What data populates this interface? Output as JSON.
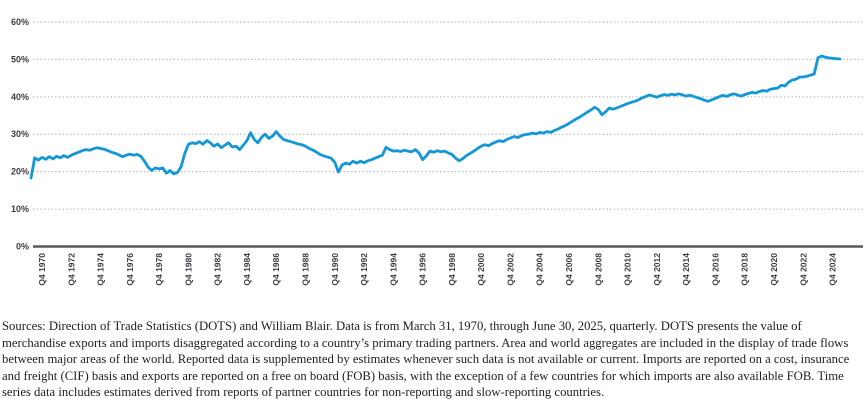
{
  "chart_data": {
    "type": "line",
    "title": "",
    "xlabel": "",
    "ylabel": "",
    "unit": "%",
    "frequency": "quarterly",
    "x_start": "Q1 1970",
    "x_end": "Q2 2025",
    "ylim": [
      0,
      60
    ],
    "grid": "dotted horizontal gridlines, solid baseline at 0%",
    "legend": "none",
    "y_tick_labels": [
      "0%",
      "10%",
      "20%",
      "30%",
      "40%",
      "50%",
      "60%"
    ],
    "x_tick_labels": [
      "Q4 1970",
      "Q4 1972",
      "Q4 1974",
      "Q4 1976",
      "Q4 1978",
      "Q4 1980",
      "Q4 1982",
      "Q4 1984",
      "Q4 1986",
      "Q4 1988",
      "Q4 1990",
      "Q4 1992",
      "Q4 1994",
      "Q4 1996",
      "Q4 1998",
      "Q4 2000",
      "Q4 2002",
      "Q4 2004",
      "Q4 2006",
      "Q4 2008",
      "Q4 2010",
      "Q4 2012",
      "Q4 2014",
      "Q4 2016",
      "Q4 2018",
      "Q4 2020",
      "Q4 2022",
      "Q4 2024"
    ],
    "values": [
      18.3,
      23.7,
      23.1,
      23.8,
      23.3,
      24.0,
      23.4,
      24.1,
      23.7,
      24.3,
      23.8,
      24.4,
      24.8,
      25.2,
      25.6,
      25.9,
      25.7,
      26.1,
      26.4,
      26.2,
      26.0,
      25.6,
      25.2,
      24.9,
      24.5,
      24.0,
      24.4,
      24.7,
      24.4,
      24.6,
      24.1,
      22.8,
      21.2,
      20.3,
      21.0,
      20.7,
      21.0,
      19.6,
      20.3,
      19.4,
      19.8,
      21.3,
      24.8,
      27.3,
      27.7,
      27.5,
      28.0,
      27.3,
      28.3,
      27.7,
      26.8,
      27.4,
      26.4,
      27.1,
      27.7,
      26.6,
      26.8,
      25.9,
      27.1,
      28.3,
      30.4,
      28.6,
      27.7,
      29.2,
      30.0,
      28.9,
      29.5,
      30.7,
      29.5,
      28.6,
      28.3,
      28.0,
      27.7,
      27.4,
      27.2,
      26.8,
      26.2,
      25.8,
      25.2,
      24.6,
      24.2,
      23.9,
      23.6,
      22.5,
      19.9,
      21.8,
      22.3,
      22.0,
      22.8,
      22.3,
      22.8,
      22.4,
      22.9,
      23.2,
      23.6,
      24.0,
      24.4,
      26.5,
      25.9,
      25.5,
      25.6,
      25.4,
      25.7,
      25.5,
      25.3,
      25.9,
      25.0,
      23.2,
      24.2,
      25.5,
      25.2,
      25.6,
      25.3,
      25.5,
      25.0,
      24.6,
      23.6,
      22.9,
      23.5,
      24.3,
      24.9,
      25.5,
      26.2,
      26.8,
      27.2,
      26.9,
      27.5,
      27.9,
      28.3,
      28.0,
      28.6,
      29.0,
      29.4,
      29.1,
      29.6,
      29.9,
      30.0,
      30.3,
      30.1,
      30.5,
      30.3,
      30.7,
      30.5,
      31.0,
      31.4,
      31.9,
      32.3,
      32.9,
      33.5,
      34.1,
      34.6,
      35.3,
      35.9,
      36.5,
      37.2,
      36.6,
      35.2,
      36.0,
      37.0,
      36.7,
      37.0,
      37.4,
      37.8,
      38.2,
      38.5,
      38.8,
      39.2,
      39.7,
      40.1,
      40.5,
      40.2,
      39.9,
      40.3,
      40.6,
      40.4,
      40.7,
      40.5,
      40.8,
      40.5,
      40.2,
      40.4,
      40.1,
      39.8,
      39.5,
      39.1,
      38.8,
      39.2,
      39.6,
      40.0,
      40.4,
      40.1,
      40.5,
      40.8,
      40.5,
      40.2,
      40.6,
      40.9,
      41.2,
      41.0,
      41.4,
      41.7,
      41.5,
      42.0,
      42.2,
      42.3,
      43.1,
      42.9,
      43.9,
      44.5,
      44.7,
      45.3,
      45.3,
      45.5,
      45.8,
      46.1,
      50.4,
      50.9,
      50.6,
      50.4,
      50.3,
      50.2,
      50.1
    ],
    "colors": {
      "line": "#1497d6",
      "gridline": "#a3a3a3",
      "baseline": "#55565b",
      "tick_text": "#3c3c44"
    }
  },
  "source_note": "Sources: Direction of Trade Statistics (DOTS) and William Blair. Data is from March 31, 1970, through June 30, 2025, quarterly. DOTS presents the value of merchandise exports and imports disaggregated according to a country’s primary trading partners. Area and world aggregates are included in the display of trade flows between major areas of the world. Reported data is supplemented by estimates whenever such data is not available or current. Imports are reported on a cost, insurance and freight (CIF) basis and exports are reported on a free on board (FOB) basis, with the exception of a few countries for which imports are also available FOB. Time series data includes estimates derived from reports of partner countries for non-reporting and slow-reporting countries."
}
